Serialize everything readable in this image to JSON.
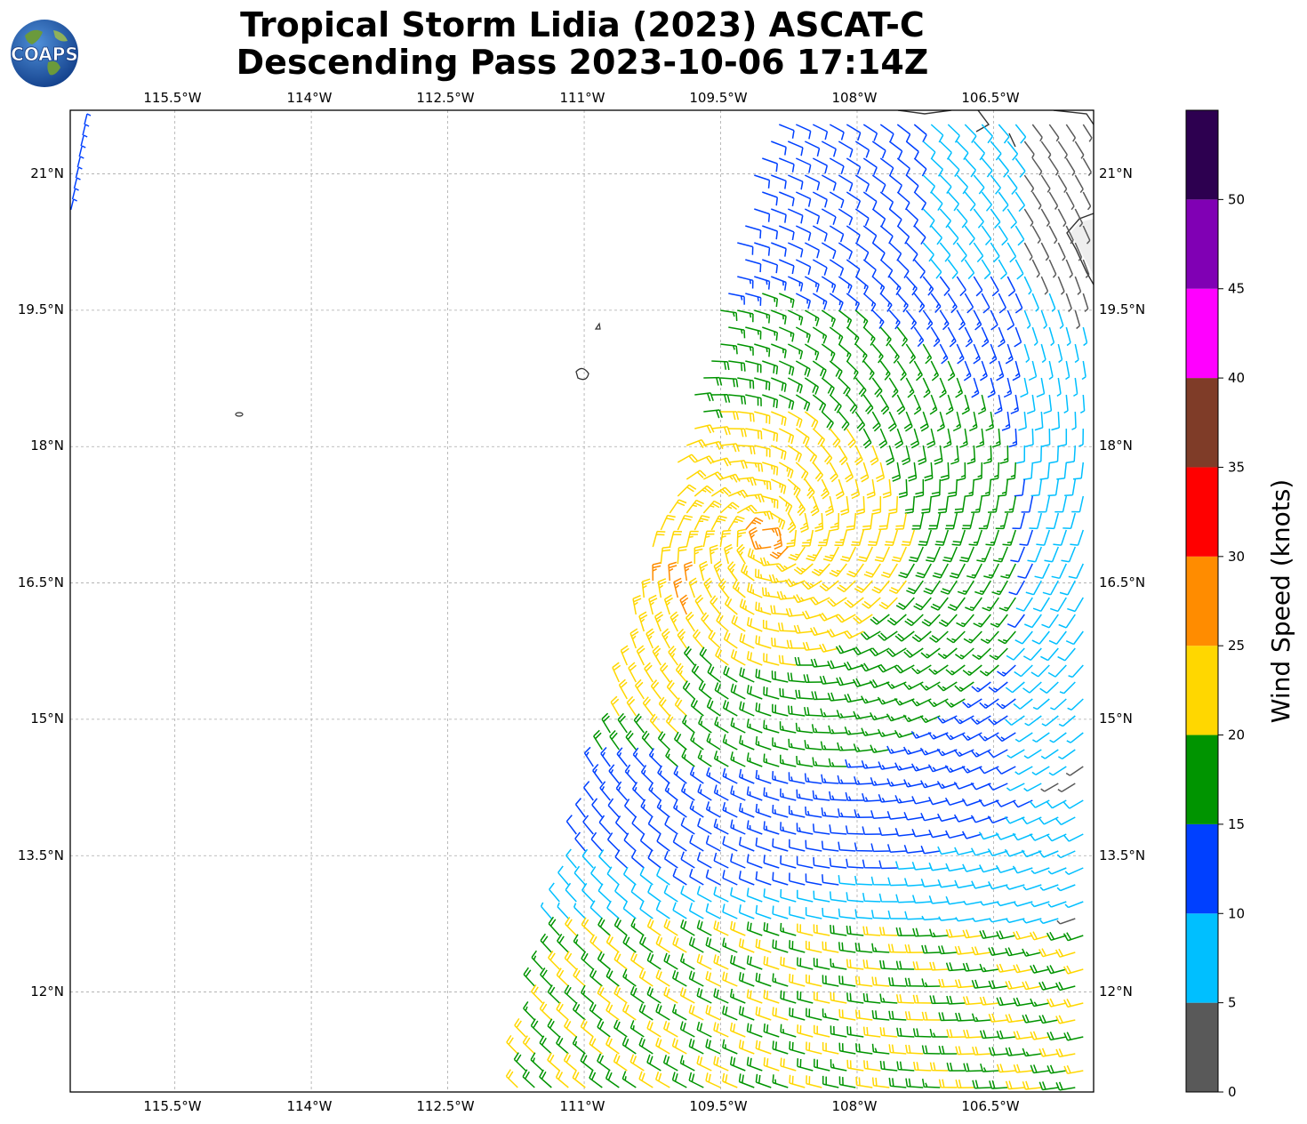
{
  "title_line1": "Tropical Storm Lidia (2023) ASCAT-C",
  "title_line2": "Descending Pass 2023-10-06 17:14Z",
  "logo": {
    "text": "COAPS",
    "icon": "globe-logo"
  },
  "map": {
    "lon_ticks": [
      "115.5°W",
      "114°W",
      "112.5°W",
      "111°W",
      "109.5°W",
      "108°W",
      "106.5°W"
    ],
    "lon_values": [
      -115.5,
      -114,
      -112.5,
      -111,
      -109.5,
      -108,
      -106.5
    ],
    "lat_ticks": [
      "21°N",
      "19.5°N",
      "18°N",
      "16.5°N",
      "15°N",
      "13.5°N",
      "12°N"
    ],
    "lat_values": [
      21,
      19.5,
      18,
      16.5,
      15,
      13.5,
      12
    ],
    "lon_range": [
      -116.65,
      -105.4
    ],
    "lat_range": [
      10.9,
      21.7
    ],
    "gridlines": true,
    "storm_center": {
      "lon": -109.0,
      "lat": 17.0
    }
  },
  "colorbar": {
    "label": "Wind Speed (knots)",
    "ticks": [
      "0",
      "5",
      "10",
      "15",
      "20",
      "25",
      "30",
      "35",
      "40",
      "45",
      "50"
    ],
    "bins": [
      {
        "min": 0,
        "max": 5,
        "color": "#595959"
      },
      {
        "min": 5,
        "max": 10,
        "color": "#00bfff"
      },
      {
        "min": 10,
        "max": 15,
        "color": "#0040ff"
      },
      {
        "min": 15,
        "max": 20,
        "color": "#009400"
      },
      {
        "min": 20,
        "max": 25,
        "color": "#ffd700"
      },
      {
        "min": 25,
        "max": 30,
        "color": "#ff8c00"
      },
      {
        "min": 30,
        "max": 35,
        "color": "#ff0000"
      },
      {
        "min": 35,
        "max": 40,
        "color": "#7f3c28"
      },
      {
        "min": 40,
        "max": 45,
        "color": "#ff00ff"
      },
      {
        "min": 45,
        "max": 50,
        "color": "#8000b4"
      },
      {
        "min": 50,
        "max": 55,
        "color": "#2d0050"
      }
    ]
  }
}
